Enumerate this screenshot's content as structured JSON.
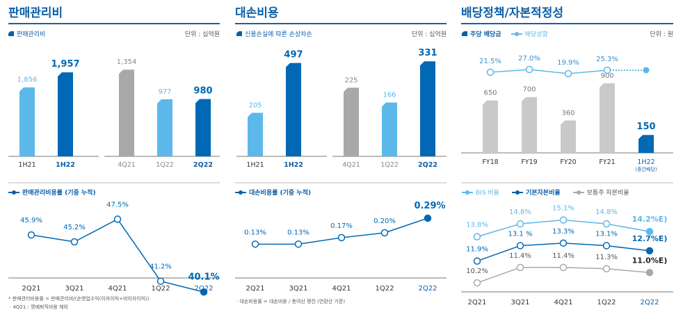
{
  "panels": [
    {
      "title": "판매관리비",
      "subtitle": "판매관리비",
      "unit": "단위 : 십억원",
      "line_legend": "판매관리비용률 (기중 누적)",
      "notes": [
        "* 판매관리비용률 = 판매관리비/(순영업수익(이자이익+비이자이익))",
        "· 4Q21 : 명예퇴직비용  제외"
      ]
    },
    {
      "title": "대손비용",
      "subtitle": "신용손실에 따른 손상차손",
      "unit": "단위 : 십억원",
      "line_legend": "대손비용률 (기중 누적)",
      "notes": [
        "· 대손비용률 = 대손비용 / 총여신 평잔 (연환산 기준)"
      ]
    },
    {
      "title": "배당정책/자본적정성",
      "subtitle": "주당 배당금",
      "subtitle2": "배당성향",
      "unit": "단위 : 원",
      "legend": [
        "BIS 비율",
        "기본자본비율",
        "보통주 자본비율"
      ]
    }
  ],
  "colors": {
    "accent": "#0b5fa8",
    "dark_blue": "#0068b4",
    "light_blue": "#5db8ea",
    "gray": "#a8a8a8",
    "light_gray": "#c9c9c9"
  },
  "chart_data": [
    {
      "type": "bar",
      "title": "판매관리비",
      "groups": [
        {
          "categories": [
            "1H21",
            "1H22"
          ],
          "values": [
            1856,
            1957
          ],
          "labels": [
            "1,856",
            "1,957"
          ],
          "ylim": [
            1390,
            2000
          ]
        },
        {
          "categories": [
            "4Q21",
            "1Q22",
            "2Q22"
          ],
          "values": [
            1354,
            977,
            980
          ],
          "labels": [
            "1,354",
            "977",
            "980"
          ],
          "ylim": [
            250,
            1400
          ]
        }
      ]
    },
    {
      "type": "line",
      "title": "판매관리비용률 (기중 누적)",
      "categories": [
        "2Q21",
        "3Q21",
        "4Q21",
        "1Q22",
        "2Q22"
      ],
      "values": [
        45.9,
        45.2,
        47.5,
        41.2,
        40.1
      ],
      "labels": [
        "45.9%",
        "45.2%",
        "47.5%",
        "41.2%",
        "40.1%"
      ],
      "ylim": [
        38,
        50
      ]
    },
    {
      "type": "bar",
      "title": "신용손실에 따른 손상차손",
      "groups": [
        {
          "categories": [
            "1H21",
            "1H22"
          ],
          "values": [
            205,
            497
          ],
          "labels": [
            "205",
            "497"
          ],
          "ylim": [
            -50,
            520
          ]
        },
        {
          "categories": [
            "4Q21",
            "1Q22",
            "2Q22"
          ],
          "values": [
            225,
            166,
            331
          ],
          "labels": [
            "225",
            "166",
            "331"
          ],
          "ylim": [
            -50,
            340
          ]
        }
      ]
    },
    {
      "type": "line",
      "title": "대손비용률 (기중 누적)",
      "categories": [
        "2Q21",
        "3Q21",
        "4Q21",
        "1Q22",
        "2Q22"
      ],
      "values": [
        0.13,
        0.13,
        0.17,
        0.2,
        0.29
      ],
      "labels": [
        "0.13%",
        "0.13%",
        "0.17%",
        "0.20%",
        "0.29%"
      ],
      "ylim": [
        0.05,
        0.35
      ]
    },
    {
      "type": "bar+line",
      "categories": [
        "FY18",
        "FY19",
        "FY20",
        "FY21",
        "1H22"
      ],
      "category_sublabels": [
        "",
        "",
        "",
        "",
        "(중간배당)"
      ],
      "series": [
        {
          "name": "주당 배당금",
          "values": [
            650,
            700,
            360,
            900,
            150
          ],
          "labels": [
            "650",
            "700",
            "360",
            "900",
            "150"
          ]
        },
        {
          "name": "배당성향",
          "values": [
            21.5,
            27.0,
            19.9,
            25.3,
            null
          ],
          "labels": [
            "21.5%",
            "27.0%",
            "19.9%",
            "25.3%",
            ""
          ]
        }
      ],
      "ylim": [
        -110,
        1000
      ]
    },
    {
      "type": "line",
      "categories": [
        "2Q21",
        "3Q21",
        "4Q21",
        "1Q22",
        "2Q22"
      ],
      "ylim": [
        9.5,
        16
      ],
      "series": [
        {
          "name": "BIS 비율",
          "values": [
            13.8,
            14.8,
            15.1,
            14.8,
            14.2
          ],
          "labels": [
            "13.8%",
            "14.8%",
            "15.1%",
            "14.8%",
            "14.2%E)"
          ]
        },
        {
          "name": "기본자본비율",
          "values": [
            11.9,
            13.1,
            13.3,
            13.1,
            12.7
          ],
          "labels": [
            "11.9%",
            "13.1 %",
            "13.3%",
            "13.1%",
            "12.7%E)"
          ]
        },
        {
          "name": "보통주 자본비율",
          "values": [
            10.2,
            11.4,
            11.4,
            11.3,
            11.0
          ],
          "labels": [
            "10.2%",
            "11.4%",
            "11.4%",
            "11.3%",
            "11.0%E)"
          ]
        }
      ]
    }
  ]
}
